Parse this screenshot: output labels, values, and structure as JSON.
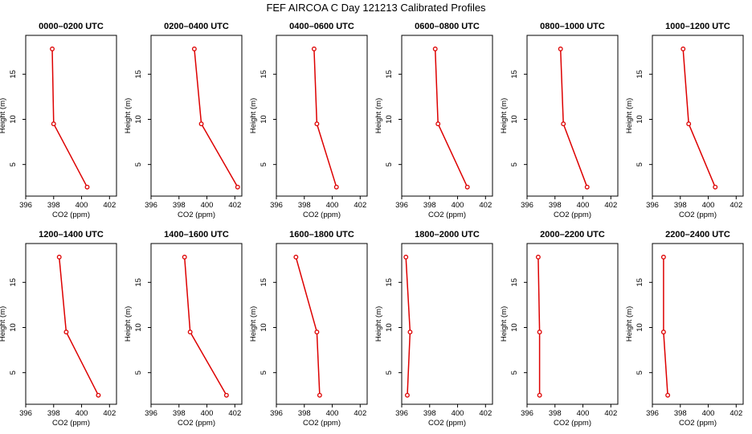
{
  "figure": {
    "title": "FEF  AIRCOA C  Day 121213  Calibrated Profiles"
  },
  "colors": {
    "series": "#dd0000",
    "axis": "#000000",
    "background": "#ffffff"
  },
  "chart_data": [
    {
      "type": "line",
      "title": "0000–0200 UTC",
      "xlabel": "CO2 (ppm)",
      "ylabel": "Height (m)",
      "xlim": [
        396,
        402.5
      ],
      "ylim": [
        1.5,
        19.3
      ],
      "xticks": [
        396,
        398,
        400,
        402
      ],
      "yticks": [
        5,
        10,
        15
      ],
      "x": [
        397.9,
        398.0,
        400.4
      ],
      "y": [
        17.8,
        9.5,
        2.5
      ]
    },
    {
      "type": "line",
      "title": "0200–0400 UTC",
      "xlabel": "CO2 (ppm)",
      "ylabel": "Height (m)",
      "xlim": [
        396,
        402.5
      ],
      "ylim": [
        1.5,
        19.3
      ],
      "xticks": [
        396,
        398,
        400,
        402
      ],
      "yticks": [
        5,
        10,
        15
      ],
      "x": [
        399.1,
        399.6,
        402.2
      ],
      "y": [
        17.8,
        9.5,
        2.5
      ]
    },
    {
      "type": "line",
      "title": "0400–0600 UTC",
      "xlabel": "CO2 (ppm)",
      "ylabel": "Height (m)",
      "xlim": [
        396,
        402.5
      ],
      "ylim": [
        1.5,
        19.3
      ],
      "xticks": [
        396,
        398,
        400,
        402
      ],
      "yticks": [
        5,
        10,
        15
      ],
      "x": [
        398.7,
        398.9,
        400.3
      ],
      "y": [
        17.8,
        9.5,
        2.5
      ]
    },
    {
      "type": "line",
      "title": "0600–0800 UTC",
      "xlabel": "CO2 (ppm)",
      "ylabel": "Height (m)",
      "xlim": [
        396,
        402.5
      ],
      "ylim": [
        1.5,
        19.3
      ],
      "xticks": [
        396,
        398,
        400,
        402
      ],
      "yticks": [
        5,
        10,
        15
      ],
      "x": [
        398.4,
        398.6,
        400.7
      ],
      "y": [
        17.8,
        9.5,
        2.5
      ]
    },
    {
      "type": "line",
      "title": "0800–1000 UTC",
      "xlabel": "CO2 (ppm)",
      "ylabel": "Height (m)",
      "xlim": [
        396,
        402.5
      ],
      "ylim": [
        1.5,
        19.3
      ],
      "xticks": [
        396,
        398,
        400,
        402
      ],
      "yticks": [
        5,
        10,
        15
      ],
      "x": [
        398.4,
        398.6,
        400.3
      ],
      "y": [
        17.8,
        9.5,
        2.5
      ]
    },
    {
      "type": "line",
      "title": "1000–1200 UTC",
      "xlabel": "CO2 (ppm)",
      "ylabel": "Height (m)",
      "xlim": [
        396,
        402.5
      ],
      "ylim": [
        1.5,
        19.3
      ],
      "xticks": [
        396,
        398,
        400,
        402
      ],
      "yticks": [
        5,
        10,
        15
      ],
      "x": [
        398.2,
        398.6,
        400.5
      ],
      "y": [
        17.8,
        9.5,
        2.5
      ]
    },
    {
      "type": "line",
      "title": "1200–1400 UTC",
      "xlabel": "CO2 (ppm)",
      "ylabel": "Height (m)",
      "xlim": [
        396,
        402.5
      ],
      "ylim": [
        1.5,
        19.3
      ],
      "xticks": [
        396,
        398,
        400,
        402
      ],
      "yticks": [
        5,
        10,
        15
      ],
      "x": [
        398.4,
        398.9,
        401.2
      ],
      "y": [
        17.8,
        9.5,
        2.5
      ]
    },
    {
      "type": "line",
      "title": "1400–1600 UTC",
      "xlabel": "CO2 (ppm)",
      "ylabel": "Height (m)",
      "xlim": [
        396,
        402.5
      ],
      "ylim": [
        1.5,
        19.3
      ],
      "xticks": [
        396,
        398,
        400,
        402
      ],
      "yticks": [
        5,
        10,
        15
      ],
      "x": [
        398.4,
        398.8,
        401.4
      ],
      "y": [
        17.8,
        9.5,
        2.5
      ]
    },
    {
      "type": "line",
      "title": "1600–1800 UTC",
      "xlabel": "CO2 (ppm)",
      "ylabel": "Height (m)",
      "xlim": [
        396,
        402.5
      ],
      "ylim": [
        1.5,
        19.3
      ],
      "xticks": [
        396,
        398,
        400,
        402
      ],
      "yticks": [
        5,
        10,
        15
      ],
      "x": [
        397.4,
        398.9,
        399.1
      ],
      "y": [
        17.8,
        9.5,
        2.5
      ]
    },
    {
      "type": "line",
      "title": "1800–2000 UTC",
      "xlabel": "CO2 (ppm)",
      "ylabel": "Height (m)",
      "xlim": [
        396,
        402.5
      ],
      "ylim": [
        1.5,
        19.3
      ],
      "xticks": [
        396,
        398,
        400,
        402
      ],
      "yticks": [
        5,
        10,
        15
      ],
      "x": [
        396.3,
        396.6,
        396.4
      ],
      "y": [
        17.8,
        9.5,
        2.5
      ]
    },
    {
      "type": "line",
      "title": "2000–2200 UTC",
      "xlabel": "CO2 (ppm)",
      "ylabel": "Height (m)",
      "xlim": [
        396,
        402.5
      ],
      "ylim": [
        1.5,
        19.3
      ],
      "xticks": [
        396,
        398,
        400,
        402
      ],
      "yticks": [
        5,
        10,
        15
      ],
      "x": [
        396.8,
        396.9,
        396.9
      ],
      "y": [
        17.8,
        9.5,
        2.5
      ]
    },
    {
      "type": "line",
      "title": "2200–2400 UTC",
      "xlabel": "CO2 (ppm)",
      "ylabel": "Height (m)",
      "xlim": [
        396,
        402.5
      ],
      "ylim": [
        1.5,
        19.3
      ],
      "xticks": [
        396,
        398,
        400,
        402
      ],
      "yticks": [
        5,
        10,
        15
      ],
      "x": [
        396.8,
        396.8,
        397.1
      ],
      "y": [
        17.8,
        9.5,
        2.5
      ]
    }
  ]
}
